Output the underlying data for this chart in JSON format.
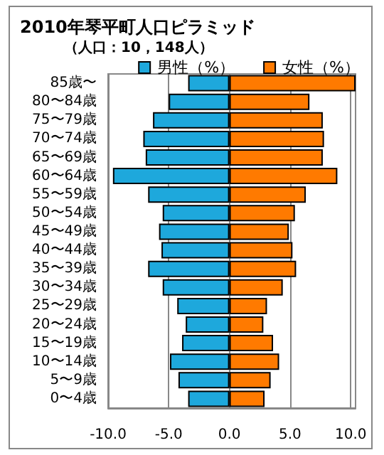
{
  "chart_data": {
    "type": "bar",
    "orientation": "horizontal",
    "title": "2010年琴平町人口ピラミッド",
    "subtitle": "（人口：10，148人）",
    "categories": [
      "85歳〜",
      "80〜84歳",
      "75〜79歳",
      "70〜74歳",
      "65〜69歳",
      "60〜64歳",
      "55〜59歳",
      "50〜54歳",
      "45〜49歳",
      "40〜44歳",
      "35〜39歳",
      "30〜34歳",
      "25〜29歳",
      "20〜24歳",
      "15〜19歳",
      "10〜14歳",
      "5〜9歳",
      "0〜4歳"
    ],
    "series": [
      {
        "name": "男性（%）",
        "color": "#1ea8dc",
        "values": [
          -3.4,
          -5.0,
          -6.3,
          -7.1,
          -6.9,
          -9.6,
          -6.7,
          -5.5,
          -5.8,
          -5.6,
          -6.7,
          -5.5,
          -4.3,
          -3.6,
          -3.9,
          -4.9,
          -4.2,
          -3.4
        ]
      },
      {
        "name": "女性（%）",
        "color": "#ff7a00",
        "values": [
          10.4,
          6.6,
          7.7,
          7.8,
          7.7,
          8.9,
          6.3,
          5.4,
          4.9,
          5.2,
          5.5,
          4.4,
          3.1,
          2.8,
          3.6,
          4.1,
          3.4,
          2.9
        ]
      }
    ],
    "xlim": [
      -10,
      10.4
    ],
    "xticks": [
      {
        "value": -10,
        "label": "-10.0"
      },
      {
        "value": -5,
        "label": "-5.0"
      },
      {
        "value": 0,
        "label": "0.0"
      },
      {
        "value": 5,
        "label": "5.0"
      },
      {
        "value": 10,
        "label": "10.0"
      }
    ],
    "stacked": true,
    "grid": "x",
    "legend": "top right"
  }
}
